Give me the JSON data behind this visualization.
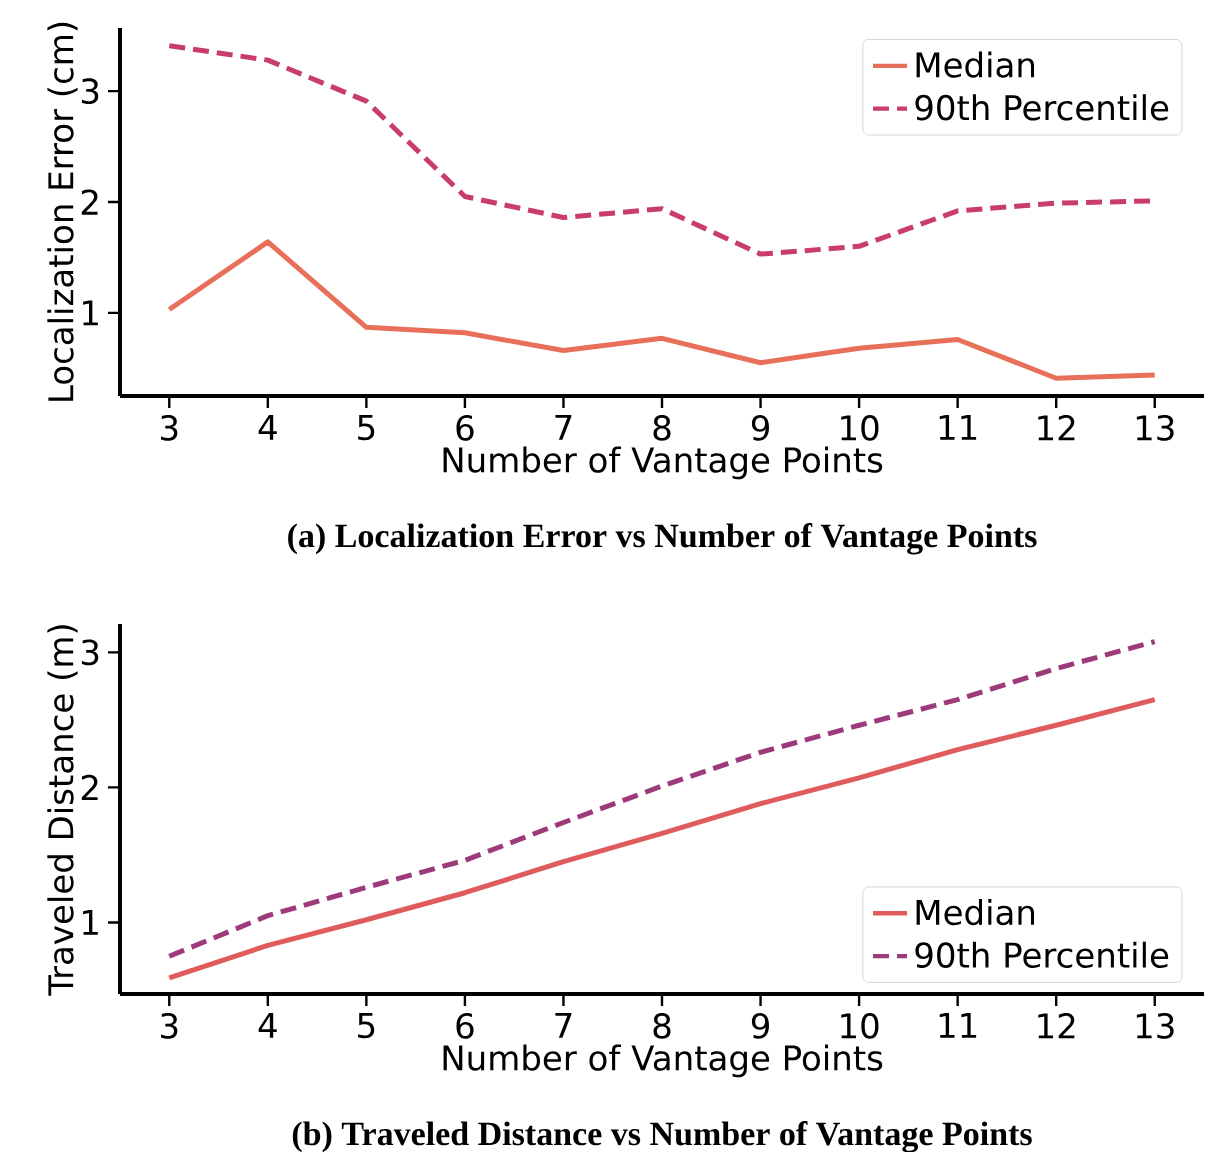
{
  "chart_data": [
    {
      "type": "line",
      "title": "(a) Localization Error vs Number of Vantage Points",
      "xlabel": "Number of Vantage Points",
      "ylabel": "Localization Error (cm)",
      "x": [
        3,
        4,
        5,
        6,
        7,
        8,
        9,
        10,
        11,
        12,
        13
      ],
      "xlim": [
        2.5,
        13.5
      ],
      "xticks": [
        3,
        4,
        5,
        6,
        7,
        8,
        9,
        10,
        11,
        12,
        13
      ],
      "ylim": [
        0.25,
        3.57
      ],
      "yticks": [
        1,
        2,
        3
      ],
      "legend": "top right",
      "series": [
        {
          "name": "Median",
          "color": "#e8705a",
          "line_style": "solid",
          "values": [
            1.03,
            1.64,
            0.87,
            0.82,
            0.66,
            0.77,
            0.55,
            0.68,
            0.76,
            0.41,
            0.44
          ]
        },
        {
          "name": "90th Percentile",
          "color": "#c83c6e",
          "line_style": "dashed",
          "values": [
            3.41,
            3.28,
            2.91,
            2.05,
            1.86,
            1.94,
            1.53,
            1.6,
            1.92,
            1.99,
            2.01
          ]
        }
      ]
    },
    {
      "type": "line",
      "title": "(b) Traveled Distance vs Number of Vantage Points",
      "xlabel": "Number of Vantage Points",
      "ylabel": "Traveled Distance (m)",
      "x": [
        3,
        4,
        5,
        6,
        7,
        8,
        9,
        10,
        11,
        12,
        13
      ],
      "xlim": [
        2.5,
        13.5
      ],
      "xticks": [
        3,
        4,
        5,
        6,
        7,
        8,
        9,
        10,
        11,
        12,
        13
      ],
      "ylim": [
        0.47,
        3.21
      ],
      "yticks": [
        1,
        2,
        3
      ],
      "legend": "bottom right",
      "series": [
        {
          "name": "Median",
          "color": "#e05b5b",
          "line_style": "solid",
          "values": [
            0.59,
            0.83,
            1.02,
            1.22,
            1.45,
            1.66,
            1.88,
            2.07,
            2.28,
            2.46,
            2.65
          ]
        },
        {
          "name": "90th Percentile",
          "color": "#9c3a7a",
          "line_style": "dashed",
          "values": [
            0.75,
            1.05,
            1.26,
            1.46,
            1.74,
            2.01,
            2.26,
            2.46,
            2.65,
            2.88,
            3.08
          ]
        }
      ]
    }
  ]
}
